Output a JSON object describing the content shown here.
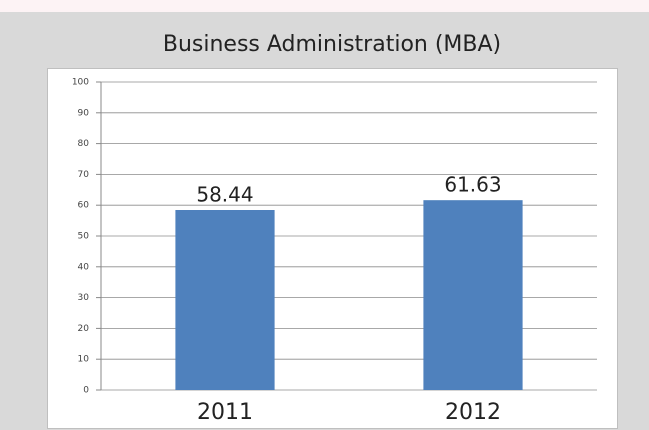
{
  "chart_data": {
    "type": "bar",
    "title": "Business Administration (MBA)",
    "categories": [
      "2011",
      "2012"
    ],
    "values": [
      58.44,
      61.63
    ],
    "color": "#4f81bd",
    "ylim": [
      0,
      100
    ],
    "yticks": [
      0,
      10,
      20,
      30,
      40,
      50,
      60,
      70,
      80,
      90,
      100
    ],
    "grid": true
  }
}
